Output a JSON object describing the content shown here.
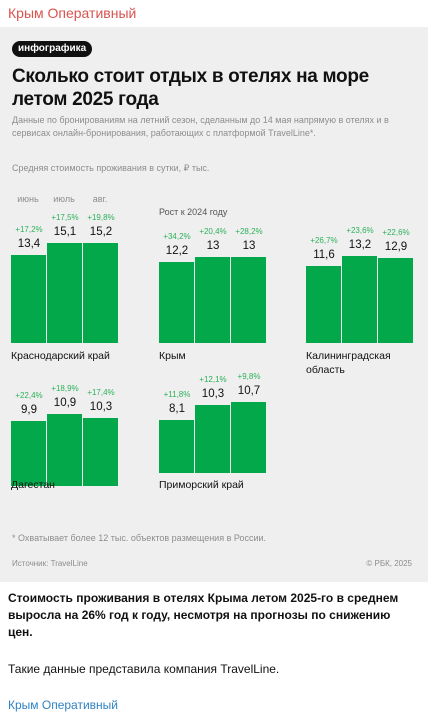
{
  "channel_name": "Крым Оперативный",
  "infographic": {
    "badge": "инфографика",
    "title": "Сколько стоит отдых в отелях на море летом 2025 года",
    "description": "Данные по бронированиям на летний сезон, сделанным до 14 мая напрямую в отелях и в сервисах онлайн-бронирования, работающих с платформой TravelLine*.",
    "unit_note": "Средняя стоимость проживания в сутки, ₽ тыс.",
    "months": [
      "июнь",
      "июль",
      "авг."
    ],
    "growth_note": "Рост к 2024 году",
    "footnote": "* Охватывает более 12 тыс. объектов размещения в России.",
    "source": "Источник: TravelLine",
    "copyright": "© РБК, 2025",
    "bar_color": "#03a84a",
    "growth_color": "#2cb15a"
  },
  "chart_data": {
    "type": "bar",
    "categories": [
      "июнь",
      "июль",
      "авг."
    ],
    "groups": [
      {
        "region": "Краснодарский край",
        "values": [
          13.4,
          15.1,
          15.2
        ],
        "growth": [
          "+17,2%",
          "+17,5%",
          "+19,8%"
        ],
        "labels": [
          "13,4",
          "15,1",
          "15,2"
        ]
      },
      {
        "region": "Крым",
        "values": [
          12.2,
          13,
          13
        ],
        "growth": [
          "+34,2%",
          "+20,4%",
          "+28,2%"
        ],
        "labels": [
          "12,2",
          "13",
          "13"
        ]
      },
      {
        "region": "Калининградская область",
        "values": [
          11.6,
          13.2,
          12.9
        ],
        "growth": [
          "+26,7%",
          "+23,6%",
          "+22,6%"
        ],
        "labels": [
          "11,6",
          "13,2",
          "12,9"
        ]
      },
      {
        "region": "Дагестан",
        "values": [
          9.9,
          10.9,
          10.3
        ],
        "growth": [
          "+22,4%",
          "+18,9%",
          "+17,4%"
        ],
        "labels": [
          "9,9",
          "10,9",
          "10,3"
        ]
      },
      {
        "region": "Приморский край",
        "values": [
          8.1,
          10.3,
          10.7
        ],
        "growth": [
          "+11,8%",
          "+12,1%",
          "+9,8%"
        ],
        "labels": [
          "8,1",
          "10,3",
          "10,7"
        ]
      }
    ]
  },
  "post": {
    "bold_text": "Стоимость проживания в отелях Крыма летом 2025-го в среднем выросла на 26% год к году, несмотря на прогнозы по снижению цен.",
    "text": "Такие данные представила компания TravelLine."
  }
}
